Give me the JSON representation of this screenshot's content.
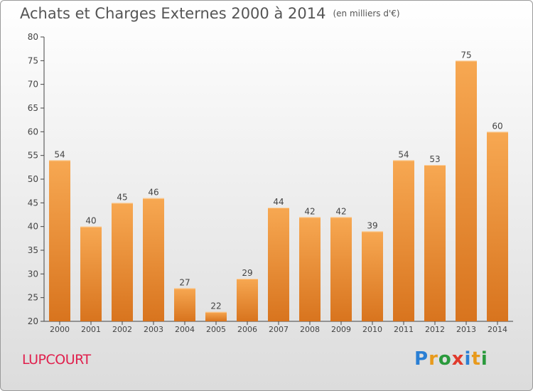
{
  "header": {
    "title": "Achats et Charges Externes 2000 à 2014",
    "unit": "(en milliers d'€)"
  },
  "footer": {
    "commune": "LUPCOURT",
    "logo_text": "Proxiti",
    "logo_colors": [
      "#2a7fd4",
      "#e89a1c",
      "#2a9a3c",
      "#e03a2c",
      "#2a7fd4",
      "#e89a1c",
      "#2a9a3c"
    ]
  },
  "colors": {
    "bar_light": "#f7a852",
    "bar_dark": "#d8741e",
    "axis": "#444444",
    "grid": "#d0d0d0"
  },
  "chart_data": {
    "type": "bar",
    "title": "Achats et Charges Externes 2000 à 2014",
    "subtitle": "(en milliers d'€)",
    "xlabel": "",
    "ylabel": "",
    "categories": [
      "2000",
      "2001",
      "2002",
      "2003",
      "2004",
      "2005",
      "2006",
      "2007",
      "2008",
      "2009",
      "2010",
      "2011",
      "2012",
      "2013",
      "2014"
    ],
    "values": [
      54,
      40,
      45,
      46,
      27,
      22,
      29,
      44,
      42,
      42,
      39,
      54,
      53,
      75,
      60
    ],
    "ylim": [
      20,
      80
    ],
    "yticks": [
      20,
      25,
      30,
      35,
      40,
      45,
      50,
      55,
      60,
      65,
      70,
      75,
      80
    ],
    "grid": false,
    "data_labels": true
  }
}
